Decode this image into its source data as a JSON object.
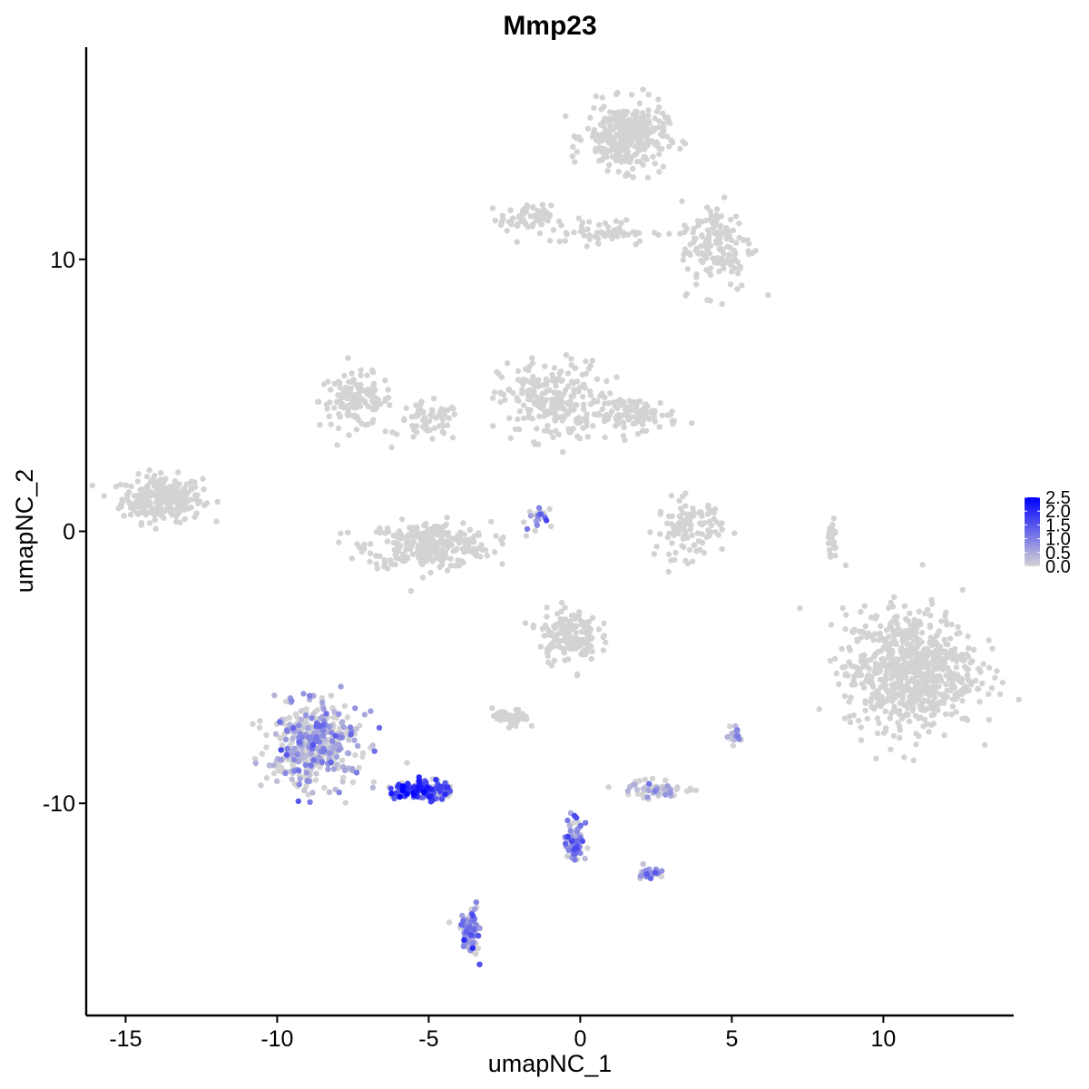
{
  "chart_data": {
    "type": "scatter",
    "title": "Mmp23",
    "xlabel": "umapNC_1",
    "ylabel": "umapNC_2",
    "xlim": [
      -16.3,
      14.3
    ],
    "ylim": [
      -17.8,
      17.8
    ],
    "x_ticks": [
      -15,
      -10,
      -5,
      0,
      5,
      10
    ],
    "x_tick_labels": [
      "-15",
      "-10",
      "-5",
      "0",
      "5",
      "10"
    ],
    "y_ticks": [
      -10,
      0,
      10
    ],
    "y_tick_labels": [
      "-10",
      "0",
      "10"
    ],
    "grid": false,
    "legend_position": "right",
    "color_scale": {
      "low_color": "#d3d3d3",
      "high_color": "#0000ff",
      "min": 0,
      "max": 2.5,
      "ticks": [
        0.0,
        0.5,
        1.0,
        1.5,
        2.0,
        2.5
      ],
      "tick_labels": [
        "0.0",
        "0.5",
        "1.0",
        "1.5",
        "2.0",
        "2.5"
      ]
    },
    "clusters": [
      {
        "center": [
          -13.8,
          1.2
        ],
        "spread": [
          1.1,
          0.7
        ],
        "n": 260,
        "expr": 0
      },
      {
        "center": [
          -7.4,
          4.8
        ],
        "spread": [
          1.0,
          0.8
        ],
        "n": 130,
        "expr": 0
      },
      {
        "center": [
          -5.0,
          4.0
        ],
        "spread": [
          0.9,
          0.6
        ],
        "n": 60,
        "expr": 0
      },
      {
        "center": [
          -5.0,
          -0.5
        ],
        "spread": [
          1.7,
          0.7
        ],
        "n": 300,
        "expr": 0
      },
      {
        "center": [
          -1.0,
          4.8
        ],
        "spread": [
          1.4,
          1.2
        ],
        "n": 230,
        "expr": 0
      },
      {
        "center": [
          1.8,
          4.3
        ],
        "spread": [
          1.2,
          0.5
        ],
        "n": 110,
        "expr": 0
      },
      {
        "center": [
          3.6,
          0.1
        ],
        "spread": [
          0.9,
          0.9
        ],
        "n": 110,
        "expr": 0
      },
      {
        "center": [
          1.5,
          14.5
        ],
        "spread": [
          1.1,
          1.0
        ],
        "n": 320,
        "expr": 0
      },
      {
        "center": [
          -1.8,
          11.5
        ],
        "spread": [
          0.7,
          0.4
        ],
        "n": 60,
        "expr": 0
      },
      {
        "center": [
          0.7,
          11.0
        ],
        "spread": [
          1.4,
          0.4
        ],
        "n": 60,
        "expr": 0
      },
      {
        "center": [
          4.5,
          10.5
        ],
        "spread": [
          1.0,
          1.4
        ],
        "n": 150,
        "expr": 0
      },
      {
        "center": [
          10.9,
          -5.1
        ],
        "spread": [
          1.8,
          1.8
        ],
        "n": 750,
        "expr": 0
      },
      {
        "center": [
          -0.4,
          -3.8
        ],
        "spread": [
          0.8,
          0.8
        ],
        "n": 150,
        "expr": 0
      },
      {
        "center": [
          -2.3,
          -6.9
        ],
        "spread": [
          0.5,
          0.3
        ],
        "n": 45,
        "expr": 0
      },
      {
        "center": [
          2.4,
          -9.5
        ],
        "spread": [
          0.9,
          0.3
        ],
        "n": 55,
        "expr": 0.2
      },
      {
        "center": [
          -8.8,
          -7.8
        ],
        "spread": [
          1.2,
          1.3
        ],
        "n": 420,
        "expr": 0.4
      },
      {
        "center": [
          -5.2,
          -9.5
        ],
        "spread": [
          0.8,
          0.3
        ],
        "n": 160,
        "expr": 1.6
      },
      {
        "center": [
          -0.2,
          -11.3
        ],
        "spread": [
          0.25,
          0.7
        ],
        "n": 80,
        "expr": 0.8
      },
      {
        "center": [
          -3.6,
          -14.7
        ],
        "spread": [
          0.25,
          0.7
        ],
        "n": 70,
        "expr": 0.9
      },
      {
        "center": [
          2.3,
          -12.6
        ],
        "spread": [
          0.3,
          0.2
        ],
        "n": 25,
        "expr": 0.8
      },
      {
        "center": [
          5.1,
          -7.5
        ],
        "spread": [
          0.2,
          0.3
        ],
        "n": 20,
        "expr": 0.6
      },
      {
        "center": [
          8.3,
          -0.3
        ],
        "spread": [
          0.15,
          0.6
        ],
        "n": 20,
        "expr": 0
      },
      {
        "center": [
          -1.5,
          0.5
        ],
        "spread": [
          0.5,
          0.4
        ],
        "n": 20,
        "expr": 0.6
      }
    ]
  }
}
